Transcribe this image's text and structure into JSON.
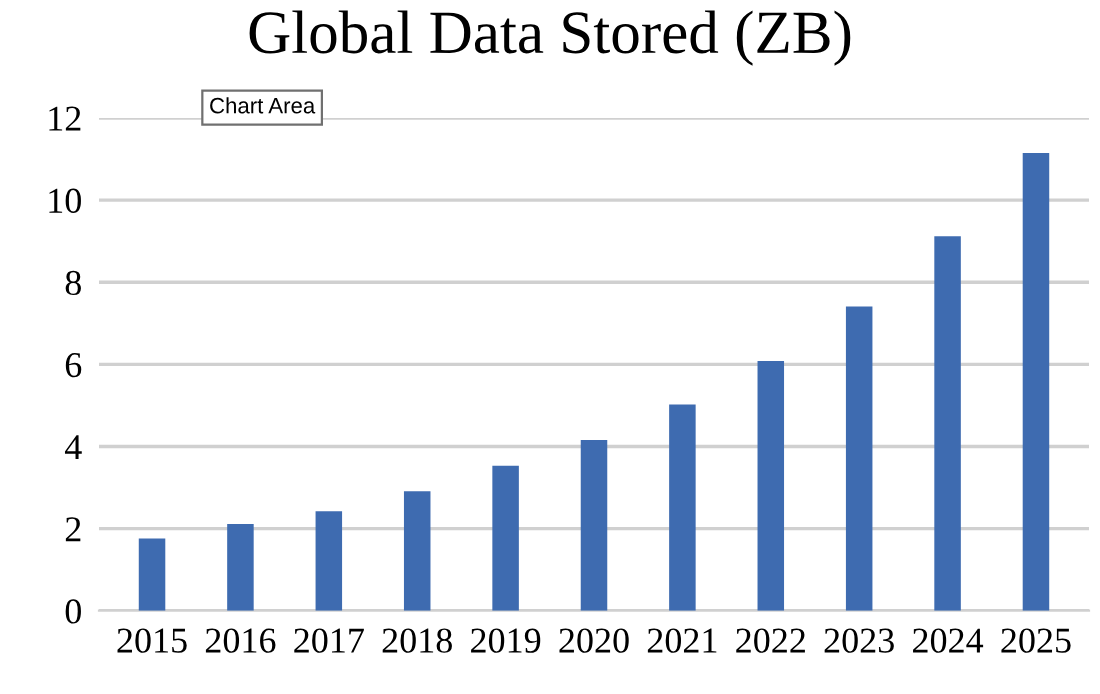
{
  "chart_data": {
    "type": "bar",
    "title": "Global Data Stored (ZB)",
    "categories": [
      "2015",
      "2016",
      "2017",
      "2018",
      "2019",
      "2020",
      "2021",
      "2022",
      "2023",
      "2024",
      "2025"
    ],
    "values": [
      1.76,
      2.11,
      2.42,
      2.91,
      3.53,
      4.16,
      5.02,
      6.08,
      7.41,
      9.12,
      11.15
    ],
    "color": "#3e6bb0",
    "ylim": [
      0,
      12
    ],
    "yticks": [
      0,
      2,
      4,
      6,
      8,
      10,
      12
    ],
    "grid": "y",
    "annotations": [
      "Chart Area"
    ]
  }
}
